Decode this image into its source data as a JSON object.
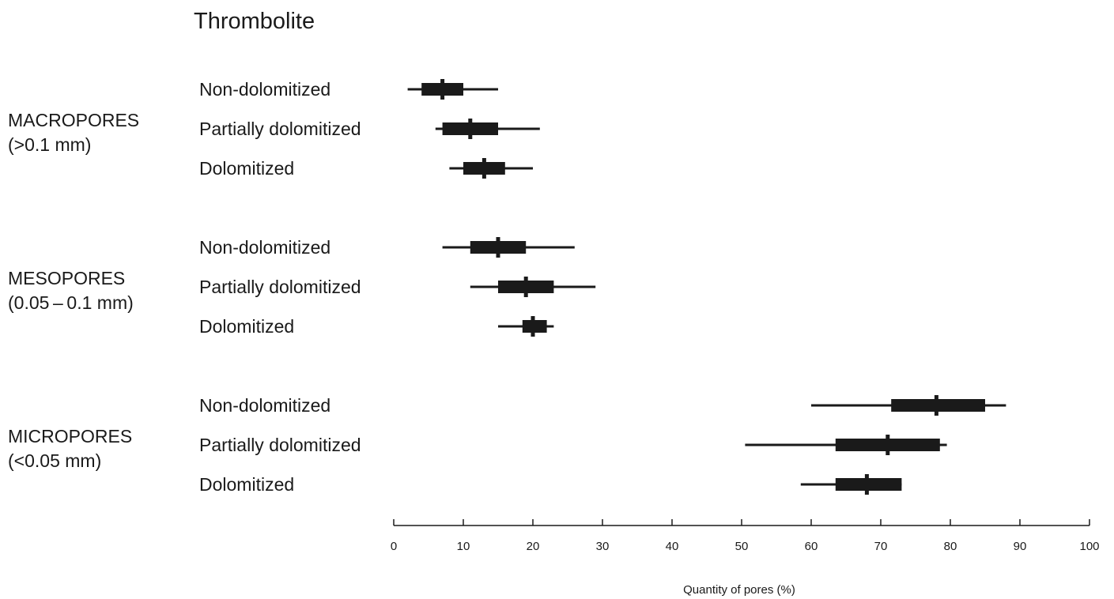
{
  "chart_data": {
    "type": "boxplot",
    "title": "Thrombolite",
    "xlabel": "Quantity of pores (%)",
    "xlim": [
      0,
      100
    ],
    "xticks": [
      0,
      10,
      20,
      30,
      40,
      50,
      60,
      70,
      80,
      90,
      100
    ],
    "color": "#1a1a1a",
    "groups": [
      {
        "name": "MACROPORES",
        "subname": "(>0.1 mm)",
        "rows": [
          {
            "label": "Non-dolomitized",
            "min": 2,
            "q1": 4,
            "median": 7,
            "q3": 10,
            "max": 15
          },
          {
            "label": "Partially dolomitized",
            "min": 6,
            "q1": 7,
            "median": 11,
            "q3": 15,
            "max": 21
          },
          {
            "label": "Dolomitized",
            "min": 8,
            "q1": 10,
            "median": 13,
            "q3": 16,
            "max": 20
          }
        ]
      },
      {
        "name": "MESOPORES",
        "subname": "(0.05 – 0.1 mm)",
        "rows": [
          {
            "label": "Non-dolomitized",
            "min": 7,
            "q1": 11,
            "median": 15,
            "q3": 19,
            "max": 26
          },
          {
            "label": "Partially dolomitized",
            "min": 11,
            "q1": 15,
            "median": 19,
            "q3": 23,
            "max": 29
          },
          {
            "label": "Dolomitized",
            "min": 15,
            "q1": 18.5,
            "median": 20,
            "q3": 22,
            "max": 23
          }
        ]
      },
      {
        "name": "MICROPORES",
        "subname": "(<0.05 mm)",
        "rows": [
          {
            "label": "Non-dolomitized",
            "min": 60,
            "q1": 71.5,
            "median": 78,
            "q3": 85,
            "max": 88
          },
          {
            "label": "Partially dolomitized",
            "min": 50.5,
            "q1": 63.5,
            "median": 71,
            "q3": 78.5,
            "max": 79.5
          },
          {
            "label": "Dolomitized",
            "min": 58.5,
            "q1": 63.5,
            "median": 68,
            "q3": 73,
            "max": 73
          }
        ]
      }
    ]
  }
}
